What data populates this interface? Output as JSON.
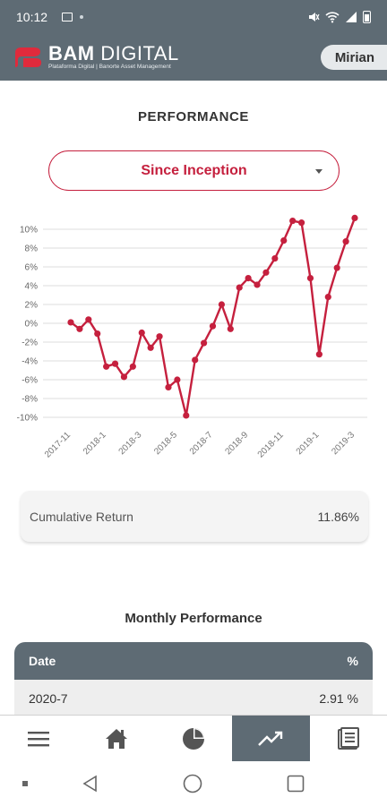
{
  "status_bar": {
    "time": "10:12"
  },
  "header": {
    "logo_title_bold": "BAM",
    "logo_title_light": "DIGITAL",
    "logo_subtitle": "Plataforma Digital | Banorte Asset Management",
    "user_name": "Mirian",
    "colors": {
      "bar": "#5e6b74",
      "brand_red": "#c5203e"
    }
  },
  "performance": {
    "title": "PERFORMANCE",
    "period_selected": "Since Inception"
  },
  "chart_data": {
    "type": "line",
    "title": "",
    "xlabel": "",
    "ylabel": "",
    "ylim": [
      -10,
      10
    ],
    "y_ticks": [
      "10%",
      "8%",
      "6%",
      "4%",
      "2%",
      "0%",
      "-2%",
      "-4%",
      "-6%",
      "-8%",
      "-10%"
    ],
    "x_tick_labels": [
      "2017-11",
      "2018-1",
      "2018-3",
      "2018-5",
      "2018-7",
      "2018-9",
      "2018-11",
      "2019-1",
      "2019-3"
    ],
    "grid": true,
    "series": [
      {
        "color": "#c5203e",
        "values": [
          0.1,
          -0.6,
          0.4,
          -1.1,
          -4.6,
          -4.3,
          -5.7,
          -4.6,
          -1.0,
          -2.6,
          -1.4,
          -6.8,
          -6.0,
          -9.8,
          -3.9,
          -2.1,
          -0.3,
          2.0,
          -0.6,
          3.8,
          4.8,
          4.1,
          5.4,
          6.9,
          8.8,
          10.9,
          10.7,
          4.8,
          -3.3,
          2.8,
          5.9,
          8.7,
          11.2
        ]
      }
    ]
  },
  "cumulative": {
    "label": "Cumulative Return",
    "value": "11.86%"
  },
  "monthly": {
    "title": "Monthly Performance",
    "headers": {
      "date": "Date",
      "pct": "%"
    },
    "rows": [
      {
        "date": "2020-7",
        "value": "2.91 %"
      }
    ]
  }
}
